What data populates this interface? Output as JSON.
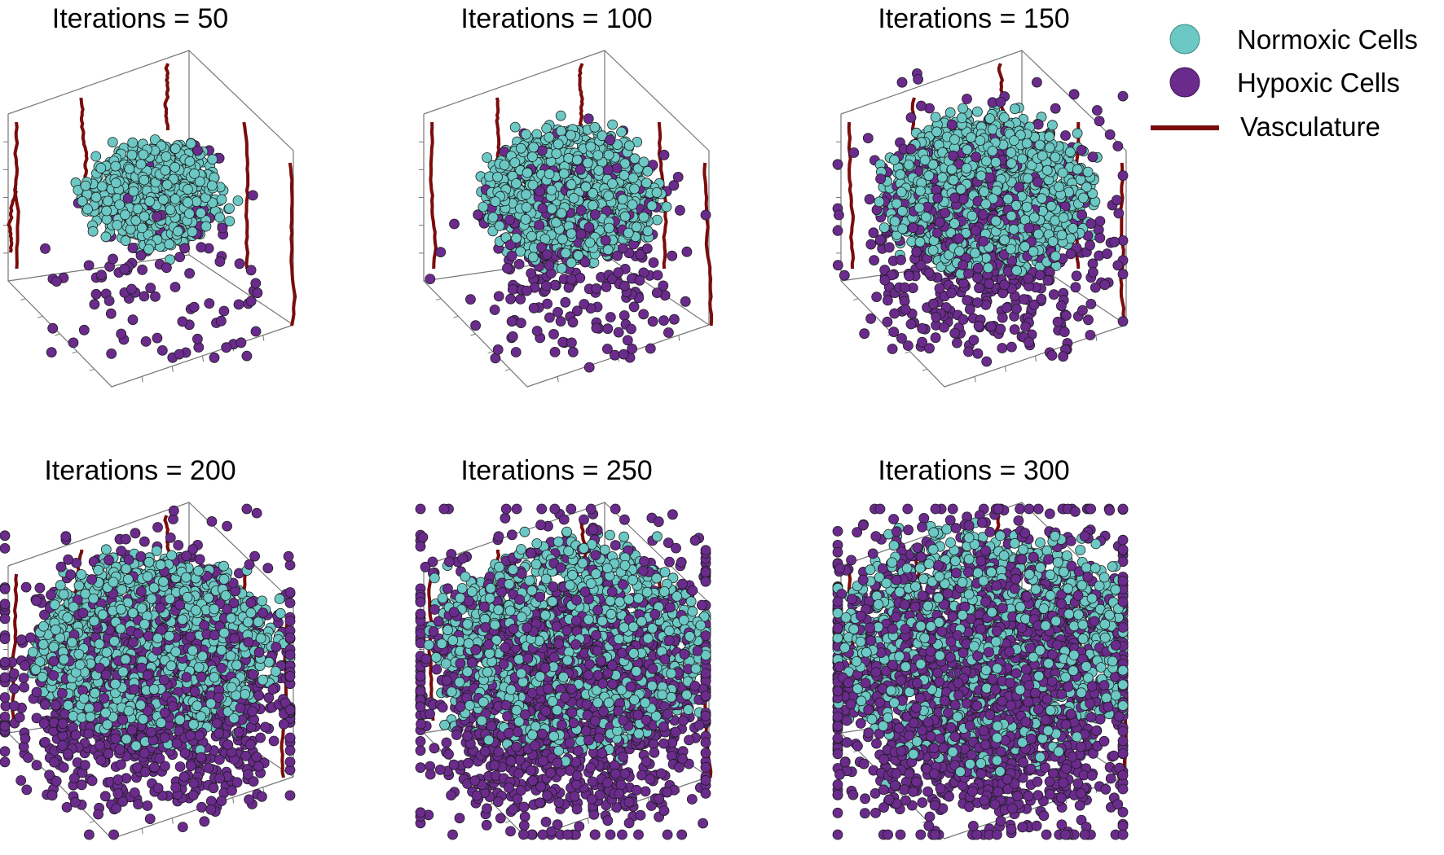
{
  "legend": {
    "normoxic": "Normoxic Cells",
    "hypoxic": "Hypoxic Cells",
    "vasculature": "Vasculature"
  },
  "colors": {
    "normoxic": "#6cc8c4",
    "hypoxic": "#6a2b8c",
    "vasculature": "#7a0c0c",
    "axes": "#777777"
  },
  "chart_data": [
    {
      "type": "scatter",
      "title": "Iterations = 50",
      "iteration": 50,
      "approx_cells": {
        "normoxic": 620,
        "hypoxic": 90
      }
    },
    {
      "type": "scatter",
      "title": "Iterations = 100",
      "iteration": 100,
      "approx_cells": {
        "normoxic": 1150,
        "hypoxic": 330
      }
    },
    {
      "type": "scatter",
      "title": "Iterations = 150",
      "iteration": 150,
      "approx_cells": {
        "normoxic": 1450,
        "hypoxic": 650
      }
    },
    {
      "type": "scatter",
      "title": "Iterations = 200",
      "iteration": 200,
      "approx_cells": {
        "normoxic": 1600,
        "hypoxic": 1300
      }
    },
    {
      "type": "scatter",
      "title": "Iterations = 250",
      "iteration": 250,
      "approx_cells": {
        "normoxic": 1500,
        "hypoxic": 1700
      }
    },
    {
      "type": "scatter",
      "title": "Iterations = 300",
      "iteration": 300,
      "approx_cells": {
        "normoxic": 1400,
        "hypoxic": 1900
      }
    }
  ]
}
